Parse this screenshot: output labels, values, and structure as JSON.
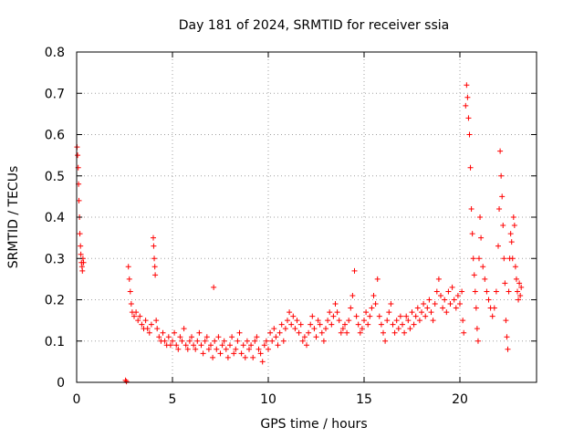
{
  "chart_data": {
    "type": "scatter",
    "title": "Day 181 of 2024, SRMTID for receiver ssia",
    "xlabel": "GPS time / hours",
    "ylabel": "SRMTID / TECUs",
    "xlim": [
      0,
      24
    ],
    "ylim": [
      0,
      0.8
    ],
    "x_ticks": [
      {
        "value": 0,
        "label": "0"
      },
      {
        "value": 5,
        "label": "5"
      },
      {
        "value": 10,
        "label": "10"
      },
      {
        "value": 15,
        "label": "15"
      },
      {
        "value": 20,
        "label": "20"
      }
    ],
    "y_ticks": [
      {
        "value": 0,
        "label": "0"
      },
      {
        "value": 0.1,
        "label": "0.1"
      },
      {
        "value": 0.2,
        "label": "0.2"
      },
      {
        "value": 0.3,
        "label": "0.3"
      },
      {
        "value": 0.4,
        "label": "0.4"
      },
      {
        "value": 0.5,
        "label": "0.5"
      },
      {
        "value": 0.6,
        "label": "0.6"
      },
      {
        "value": 0.7,
        "label": "0.7"
      },
      {
        "value": 0.8,
        "label": "0.8"
      }
    ],
    "grid": true,
    "marker": "plus",
    "color": "#ff0000",
    "series": [
      {
        "name": "SRMTID",
        "points": [
          [
            0.02,
            0.57
          ],
          [
            0.05,
            0.55
          ],
          [
            0.08,
            0.52
          ],
          [
            0.1,
            0.48
          ],
          [
            0.12,
            0.44
          ],
          [
            0.15,
            0.4
          ],
          [
            0.17,
            0.36
          ],
          [
            0.2,
            0.33
          ],
          [
            0.22,
            0.31
          ],
          [
            0.25,
            0.29
          ],
          [
            0.28,
            0.28
          ],
          [
            0.3,
            0.27
          ],
          [
            0.33,
            0.3
          ],
          [
            0.36,
            0.29
          ],
          [
            2.55,
            0.005
          ],
          [
            2.6,
            0.002
          ],
          [
            2.7,
            0.28
          ],
          [
            2.75,
            0.25
          ],
          [
            2.8,
            0.22
          ],
          [
            2.85,
            0.19
          ],
          [
            2.9,
            0.17
          ],
          [
            3.0,
            0.16
          ],
          [
            3.1,
            0.17
          ],
          [
            3.2,
            0.15
          ],
          [
            3.3,
            0.16
          ],
          [
            3.4,
            0.14
          ],
          [
            3.5,
            0.13
          ],
          [
            3.6,
            0.15
          ],
          [
            3.7,
            0.13
          ],
          [
            3.8,
            0.12
          ],
          [
            3.9,
            0.14
          ],
          [
            4.0,
            0.35
          ],
          [
            4.02,
            0.33
          ],
          [
            4.05,
            0.3
          ],
          [
            4.08,
            0.28
          ],
          [
            4.1,
            0.26
          ],
          [
            4.15,
            0.15
          ],
          [
            4.2,
            0.13
          ],
          [
            4.3,
            0.11
          ],
          [
            4.4,
            0.1
          ],
          [
            4.5,
            0.12
          ],
          [
            4.6,
            0.1
          ],
          [
            4.7,
            0.09
          ],
          [
            4.8,
            0.11
          ],
          [
            4.9,
            0.09
          ],
          [
            5.0,
            0.1
          ],
          [
            5.1,
            0.12
          ],
          [
            5.2,
            0.09
          ],
          [
            5.3,
            0.08
          ],
          [
            5.4,
            0.11
          ],
          [
            5.5,
            0.1
          ],
          [
            5.6,
            0.13
          ],
          [
            5.7,
            0.09
          ],
          [
            5.8,
            0.08
          ],
          [
            5.9,
            0.1
          ],
          [
            6.0,
            0.11
          ],
          [
            6.1,
            0.09
          ],
          [
            6.2,
            0.08
          ],
          [
            6.3,
            0.1
          ],
          [
            6.4,
            0.12
          ],
          [
            6.5,
            0.09
          ],
          [
            6.6,
            0.07
          ],
          [
            6.7,
            0.1
          ],
          [
            6.8,
            0.11
          ],
          [
            6.9,
            0.08
          ],
          [
            7.0,
            0.09
          ],
          [
            7.1,
            0.06
          ],
          [
            7.15,
            0.23
          ],
          [
            7.2,
            0.1
          ],
          [
            7.3,
            0.08
          ],
          [
            7.4,
            0.11
          ],
          [
            7.5,
            0.07
          ],
          [
            7.6,
            0.09
          ],
          [
            7.7,
            0.1
          ],
          [
            7.8,
            0.08
          ],
          [
            7.9,
            0.06
          ],
          [
            8.0,
            0.09
          ],
          [
            8.1,
            0.11
          ],
          [
            8.2,
            0.07
          ],
          [
            8.3,
            0.08
          ],
          [
            8.4,
            0.1
          ],
          [
            8.5,
            0.12
          ],
          [
            8.6,
            0.07
          ],
          [
            8.7,
            0.09
          ],
          [
            8.8,
            0.06
          ],
          [
            8.9,
            0.1
          ],
          [
            9.0,
            0.08
          ],
          [
            9.1,
            0.09
          ],
          [
            9.2,
            0.06
          ],
          [
            9.3,
            0.1
          ],
          [
            9.4,
            0.11
          ],
          [
            9.5,
            0.08
          ],
          [
            9.6,
            0.07
          ],
          [
            9.7,
            0.05
          ],
          [
            9.8,
            0.09
          ],
          [
            9.9,
            0.1
          ],
          [
            10.0,
            0.08
          ],
          [
            10.1,
            0.12
          ],
          [
            10.2,
            0.1
          ],
          [
            10.3,
            0.13
          ],
          [
            10.4,
            0.11
          ],
          [
            10.5,
            0.09
          ],
          [
            10.6,
            0.12
          ],
          [
            10.7,
            0.14
          ],
          [
            10.8,
            0.1
          ],
          [
            10.9,
            0.13
          ],
          [
            11.0,
            0.15
          ],
          [
            11.1,
            0.17
          ],
          [
            11.2,
            0.14
          ],
          [
            11.3,
            0.16
          ],
          [
            11.4,
            0.13
          ],
          [
            11.5,
            0.15
          ],
          [
            11.6,
            0.12
          ],
          [
            11.7,
            0.14
          ],
          [
            11.8,
            0.1
          ],
          [
            11.9,
            0.11
          ],
          [
            12.0,
            0.09
          ],
          [
            12.1,
            0.12
          ],
          [
            12.2,
            0.14
          ],
          [
            12.3,
            0.16
          ],
          [
            12.4,
            0.13
          ],
          [
            12.5,
            0.11
          ],
          [
            12.6,
            0.15
          ],
          [
            12.7,
            0.14
          ],
          [
            12.8,
            0.12
          ],
          [
            12.9,
            0.1
          ],
          [
            13.0,
            0.13
          ],
          [
            13.1,
            0.15
          ],
          [
            13.2,
            0.17
          ],
          [
            13.3,
            0.14
          ],
          [
            13.4,
            0.16
          ],
          [
            13.5,
            0.19
          ],
          [
            13.6,
            0.17
          ],
          [
            13.7,
            0.15
          ],
          [
            13.8,
            0.12
          ],
          [
            13.9,
            0.13
          ],
          [
            14.0,
            0.14
          ],
          [
            14.1,
            0.12
          ],
          [
            14.2,
            0.15
          ],
          [
            14.3,
            0.18
          ],
          [
            14.4,
            0.21
          ],
          [
            14.5,
            0.27
          ],
          [
            14.6,
            0.16
          ],
          [
            14.7,
            0.14
          ],
          [
            14.8,
            0.12
          ],
          [
            14.9,
            0.13
          ],
          [
            15.0,
            0.15
          ],
          [
            15.1,
            0.17
          ],
          [
            15.2,
            0.14
          ],
          [
            15.3,
            0.16
          ],
          [
            15.4,
            0.18
          ],
          [
            15.5,
            0.21
          ],
          [
            15.6,
            0.19
          ],
          [
            15.7,
            0.25
          ],
          [
            15.8,
            0.16
          ],
          [
            15.9,
            0.14
          ],
          [
            16.0,
            0.12
          ],
          [
            16.1,
            0.1
          ],
          [
            16.2,
            0.15
          ],
          [
            16.3,
            0.17
          ],
          [
            16.4,
            0.19
          ],
          [
            16.5,
            0.14
          ],
          [
            16.6,
            0.12
          ],
          [
            16.7,
            0.15
          ],
          [
            16.8,
            0.13
          ],
          [
            16.9,
            0.16
          ],
          [
            17.0,
            0.14
          ],
          [
            17.1,
            0.12
          ],
          [
            17.2,
            0.16
          ],
          [
            17.3,
            0.15
          ],
          [
            17.4,
            0.13
          ],
          [
            17.5,
            0.17
          ],
          [
            17.6,
            0.14
          ],
          [
            17.7,
            0.16
          ],
          [
            17.8,
            0.18
          ],
          [
            17.9,
            0.15
          ],
          [
            18.0,
            0.17
          ],
          [
            18.1,
            0.19
          ],
          [
            18.2,
            0.16
          ],
          [
            18.3,
            0.18
          ],
          [
            18.4,
            0.2
          ],
          [
            18.5,
            0.17
          ],
          [
            18.6,
            0.15
          ],
          [
            18.7,
            0.19
          ],
          [
            18.8,
            0.22
          ],
          [
            18.9,
            0.25
          ],
          [
            19.0,
            0.21
          ],
          [
            19.1,
            0.18
          ],
          [
            19.2,
            0.2
          ],
          [
            19.3,
            0.17
          ],
          [
            19.4,
            0.22
          ],
          [
            19.5,
            0.19
          ],
          [
            19.6,
            0.23
          ],
          [
            19.7,
            0.2
          ],
          [
            19.8,
            0.18
          ],
          [
            19.9,
            0.21
          ],
          [
            20.0,
            0.19
          ],
          [
            20.1,
            0.22
          ],
          [
            20.15,
            0.15
          ],
          [
            20.2,
            0.12
          ],
          [
            20.3,
            0.67
          ],
          [
            20.35,
            0.72
          ],
          [
            20.4,
            0.69
          ],
          [
            20.45,
            0.64
          ],
          [
            20.5,
            0.6
          ],
          [
            20.55,
            0.52
          ],
          [
            20.6,
            0.42
          ],
          [
            20.65,
            0.36
          ],
          [
            20.7,
            0.3
          ],
          [
            20.75,
            0.26
          ],
          [
            20.8,
            0.22
          ],
          [
            20.85,
            0.18
          ],
          [
            20.9,
            0.13
          ],
          [
            20.95,
            0.1
          ],
          [
            21.0,
            0.3
          ],
          [
            21.05,
            0.4
          ],
          [
            21.1,
            0.35
          ],
          [
            21.2,
            0.28
          ],
          [
            21.3,
            0.25
          ],
          [
            21.4,
            0.22
          ],
          [
            21.5,
            0.2
          ],
          [
            21.6,
            0.18
          ],
          [
            21.7,
            0.16
          ],
          [
            21.8,
            0.18
          ],
          [
            21.9,
            0.22
          ],
          [
            22.0,
            0.33
          ],
          [
            22.05,
            0.42
          ],
          [
            22.1,
            0.56
          ],
          [
            22.15,
            0.5
          ],
          [
            22.2,
            0.45
          ],
          [
            22.25,
            0.38
          ],
          [
            22.3,
            0.3
          ],
          [
            22.35,
            0.24
          ],
          [
            22.4,
            0.15
          ],
          [
            22.45,
            0.11
          ],
          [
            22.5,
            0.08
          ],
          [
            22.55,
            0.22
          ],
          [
            22.6,
            0.3
          ],
          [
            22.65,
            0.36
          ],
          [
            22.7,
            0.34
          ],
          [
            22.75,
            0.3
          ],
          [
            22.8,
            0.4
          ],
          [
            22.85,
            0.38
          ],
          [
            22.9,
            0.28
          ],
          [
            22.95,
            0.25
          ],
          [
            23.0,
            0.22
          ],
          [
            23.05,
            0.2
          ],
          [
            23.1,
            0.24
          ],
          [
            23.15,
            0.21
          ],
          [
            23.2,
            0.23
          ]
        ]
      }
    ]
  }
}
